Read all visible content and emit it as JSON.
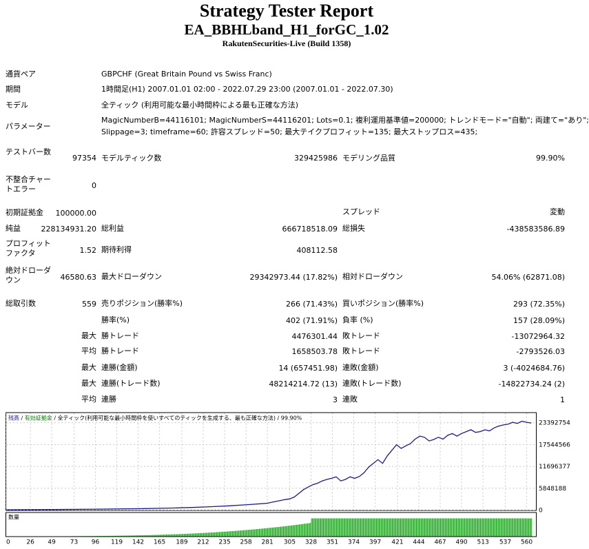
{
  "header": {
    "title": "Strategy Tester Report",
    "subtitle": "EA_BBHLband_H1_forGC_1.02",
    "server": "RakutenSecurities-Live (Build 1358)"
  },
  "info": {
    "symbol_label": "通貨ペア",
    "symbol_value": "GBPCHF (Great Britain Pound vs Swiss Franc)",
    "period_label": "期間",
    "period_value": "1時間足(H1) 2007.01.01 02:00 - 2022.07.29 23:00 (2007.01.01 - 2022.07.30)",
    "model_label": "モデル",
    "model_value": "全ティック (利用可能な最小時間枠による最も正確な方法)",
    "params_label": "パラメーター",
    "params_line1": "MagicNumberB=44116101; MagicNumberS=44116201; Lots=0.1; 複利運用基準値=200000; トレンドモード=\"自動\"; 両建て=\"あり\";",
    "params_line2": "Slippage=3; timeframe=60; 許容スプレッド=50; 最大テイクプロフィット=135; 最大ストップロス=435;"
  },
  "stats": {
    "bars_label": "テストバー数",
    "bars_value": "97354",
    "ticks_label": "モデルティック数",
    "ticks_value": "329425986",
    "quality_label": "モデリング品質",
    "quality_value": "99.90%",
    "mismatch_label": "不整合チャートエラー",
    "mismatch_value": "0",
    "deposit_label": "初期証拠金",
    "deposit_value": "100000.00",
    "spread_label": "スプレッド",
    "spread_value": "変動",
    "net_label": "純益",
    "net_value": "228134931.20",
    "gross_profit_label": "総利益",
    "gross_profit_value": "666718518.09",
    "gross_loss_label": "総損失",
    "gross_loss_value": "-438583586.89",
    "pf_label": "プロフィットファクタ",
    "pf_value": "1.52",
    "payoff_label": "期待利得",
    "payoff_value": "408112.58",
    "abs_dd_label": "絶対ドローダウン",
    "abs_dd_value": "46580.63",
    "max_dd_label": "最大ドローダウン",
    "max_dd_value": "29342973.44 (17.82%)",
    "rel_dd_label": "相対ドローダウン",
    "rel_dd_value": "54.06% (62871.08)",
    "trades_label": "総取引数",
    "trades_value": "559",
    "short_label": "売りポジション(勝率%)",
    "short_value": "266 (71.43%)",
    "long_label": "買いポジション(勝率%)",
    "long_value": "293 (72.35%)",
    "win_label": "勝率(%)",
    "win_value": "402 (71.91%)",
    "loss_label": "負率 (%)",
    "loss_value": "157 (28.09%)",
    "largest_prefix": "最大",
    "largest_win_label": "勝トレード",
    "largest_win_value": "4476301.44",
    "largest_loss_label": "敗トレード",
    "largest_loss_value": "-13072964.32",
    "avg_prefix": "平均",
    "avg_win_label": "勝トレード",
    "avg_win_value": "1658503.78",
    "avg_loss_label": "敗トレード",
    "avg_loss_value": "-2793526.03",
    "max_prefix1": "最大",
    "cons_wins_label": "連勝(金額)",
    "cons_wins_value": "14 (657451.98)",
    "cons_losses_label": "連敗(金額)",
    "cons_losses_value": "3 (-4024684.76)",
    "max_prefix2": "最大",
    "cons_profit_label": "連勝(トレード数)",
    "cons_profit_value": "48214214.72 (13)",
    "cons_loss_label": "連敗(トレード数)",
    "cons_loss_value": "-14822734.24 (2)",
    "avg_prefix2": "平均",
    "avg_cons_wins_label": "連勝",
    "avg_cons_wins_value": "3",
    "avg_cons_losses_label": "連敗",
    "avg_cons_losses_value": "1"
  },
  "chart_legend": {
    "balance": "残高",
    "sep1": " / ",
    "equity": "有効証拠金",
    "sep2": " / ",
    "model_text": "全ティック(利用可能な最小時間枠を使いすべてのティックを生成する、最も正確な方法)",
    "sep3": " / ",
    "quality": "99.90%",
    "lots_label": "数量"
  },
  "colors": {
    "balance_line": "#1a1a8c",
    "equity_text": "#008000",
    "volume_bar": "#22aa22",
    "grid": "#c8c8c8"
  },
  "chart_data": {
    "type": "line",
    "title": "",
    "xlabel": "",
    "ylabel": "",
    "x_ticks": [
      0,
      26,
      49,
      73,
      96,
      119,
      142,
      165,
      189,
      212,
      235,
      258,
      281,
      305,
      328,
      351,
      374,
      397,
      421,
      444,
      467,
      490,
      513,
      537,
      560
    ],
    "y_ticks": [
      0,
      5848188,
      11696377,
      17544566,
      23392754
    ],
    "xlim": [
      0,
      570
    ],
    "ylim": [
      0,
      26000000
    ],
    "grid": true,
    "series": [
      {
        "x": [
          0,
          50,
          100,
          150,
          180,
          200,
          220,
          240,
          260,
          280,
          290,
          300,
          305,
          310,
          315,
          320,
          325,
          330,
          335,
          340,
          345,
          350,
          355,
          360,
          365,
          370,
          375,
          380,
          385,
          390,
          395,
          400,
          405,
          410,
          415,
          420,
          425,
          430,
          435,
          440,
          445,
          450,
          455,
          460,
          465,
          470,
          475,
          480,
          485,
          490,
          495,
          500,
          505,
          510,
          515,
          520,
          525,
          530,
          535,
          540,
          545,
          550,
          555,
          560,
          565
        ],
        "values": [
          100000,
          150000,
          250000,
          400000,
          550000,
          700000,
          900000,
          1150000,
          1450000,
          1800000,
          2300000,
          2800000,
          3000000,
          3500000,
          4500000,
          5500000,
          6200000,
          6800000,
          7200000,
          7800000,
          8200000,
          8500000,
          8900000,
          7800000,
          8200000,
          8900000,
          8500000,
          9000000,
          10000000,
          11500000,
          12500000,
          13500000,
          12500000,
          14500000,
          16000000,
          17500000,
          16500000,
          17200000,
          17800000,
          19000000,
          19800000,
          19500000,
          18500000,
          18900000,
          19500000,
          19000000,
          20000000,
          20500000,
          19800000,
          20500000,
          21000000,
          21500000,
          20800000,
          21000000,
          21500000,
          21200000,
          22000000,
          22500000,
          22800000,
          23000000,
          23500000,
          23200000,
          23800000,
          23500000,
          23300000
        ]
      }
    ],
    "volume_start_trade": 328,
    "volume_level": 1.0
  }
}
